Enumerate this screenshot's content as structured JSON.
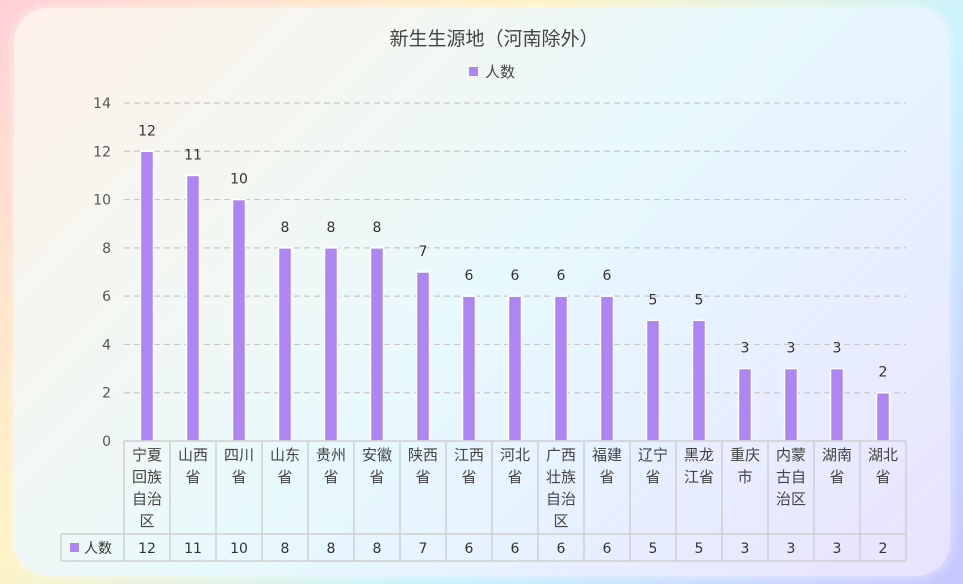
{
  "colors": {
    "bar": "#ad86f3",
    "grid": "#c9c9c9",
    "table_border": "#cfcfcf"
  },
  "chart_data": {
    "type": "bar",
    "title": "新生生源地（河南除外）",
    "categories": [
      "宁夏回族自治区",
      "山西省",
      "四川省",
      "山东省",
      "贵州省",
      "安徽省",
      "陕西省",
      "江西省",
      "河北省",
      "广西壮族自治区",
      "福建省",
      "辽宁省",
      "黑龙江省",
      "重庆市",
      "内蒙古自治区",
      "湖南省",
      "湖北省"
    ],
    "series": [
      {
        "name": "人数",
        "values": [
          12,
          11,
          10,
          8,
          8,
          8,
          7,
          6,
          6,
          6,
          6,
          5,
          5,
          3,
          3,
          3,
          2
        ]
      }
    ],
    "ylim": [
      0,
      14
    ],
    "yticks": [
      0,
      2,
      4,
      6,
      8,
      10,
      12,
      14
    ],
    "grid": true,
    "legend": "top-center",
    "data_table": true
  }
}
